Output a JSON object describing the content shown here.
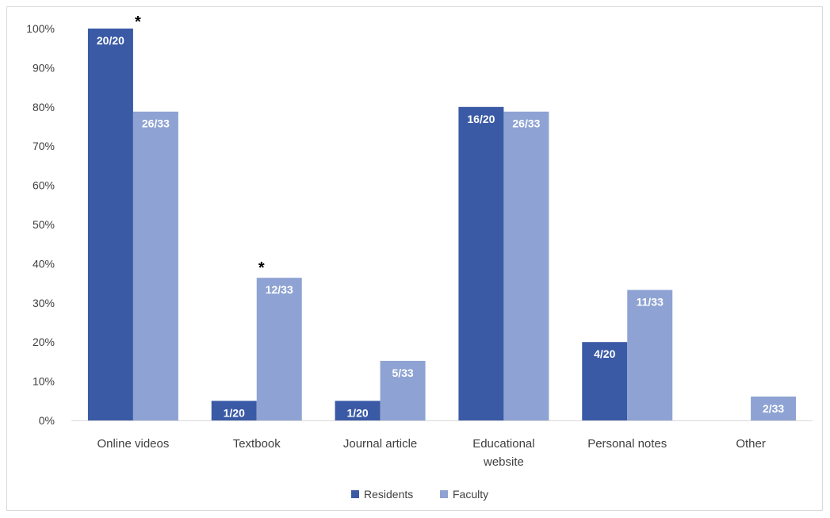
{
  "chart_data": {
    "type": "bar",
    "categories": [
      [
        "Online videos"
      ],
      [
        "Textbook"
      ],
      [
        "Journal article"
      ],
      [
        "Educational",
        "website"
      ],
      [
        "Personal notes"
      ],
      [
        "Other"
      ]
    ],
    "yticks": [
      "0%",
      "10%",
      "20%",
      "30%",
      "40%",
      "50%",
      "60%",
      "70%",
      "80%",
      "90%",
      "100%"
    ],
    "ylim": [
      0,
      100
    ],
    "grid": false,
    "legend_position": "bottom",
    "series": [
      {
        "name": "Residents",
        "color": "#3a5aa5",
        "values": [
          100,
          5,
          5,
          80,
          20,
          0
        ],
        "labels": [
          "20/20",
          "1/20",
          "1/20",
          "16/20",
          "4/20",
          ""
        ]
      },
      {
        "name": "Faculty",
        "color": "#8ea3d3",
        "values": [
          78.8,
          36.4,
          15.2,
          78.8,
          33.3,
          6.1
        ],
        "labels": [
          "26/33",
          "12/33",
          "5/33",
          "26/33",
          "11/33",
          "2/33"
        ]
      }
    ],
    "annotations": [
      {
        "text": "*",
        "category_index": 0
      },
      {
        "text": "*",
        "category_index": 1
      }
    ]
  }
}
